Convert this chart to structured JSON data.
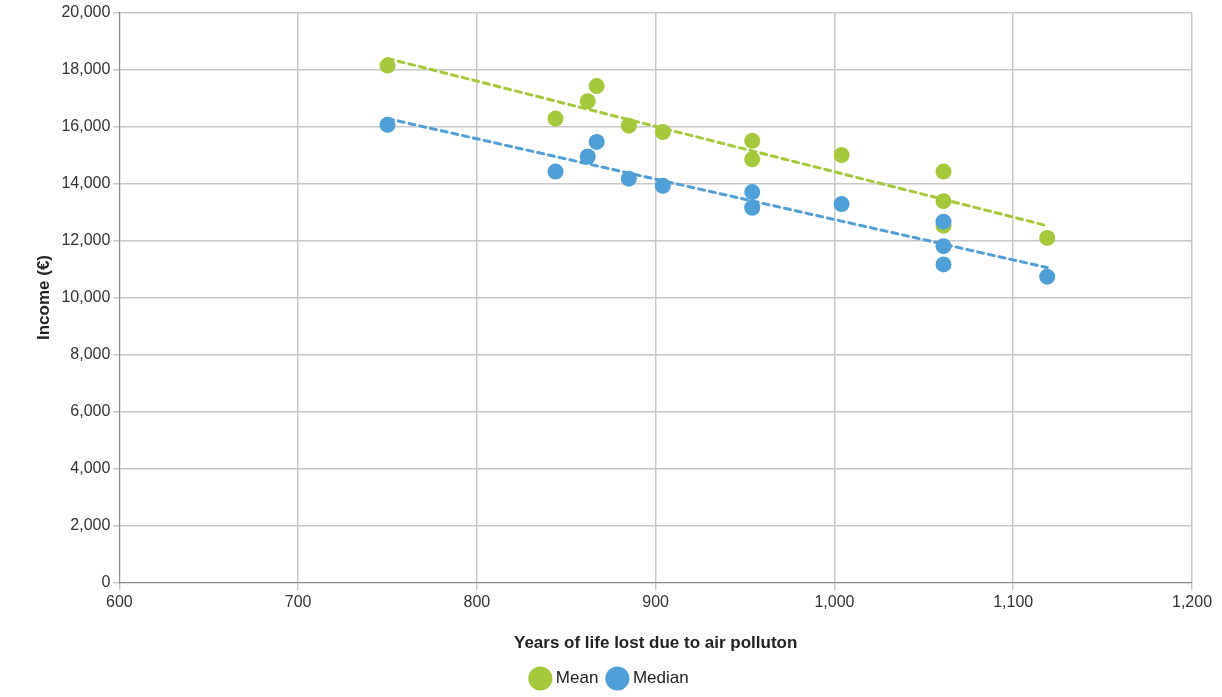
{
  "chart_data": {
    "type": "scatter",
    "xlabel": "Years of life lost due to air polluton",
    "ylabel": "Income (€)",
    "series": [
      {
        "name": "Mean",
        "color": "#a5c93a",
        "x": [
          750,
          844,
          862,
          867,
          885,
          904,
          954,
          954,
          1004,
          1061,
          1061,
          1061,
          1119
        ],
        "values": [
          18140,
          16280,
          16890,
          17420,
          16030,
          15810,
          15500,
          14850,
          15000,
          14420,
          13380,
          12520,
          12090
        ]
      },
      {
        "name": "Median",
        "color": "#4f9fd8",
        "x": [
          750,
          844,
          862,
          867,
          885,
          904,
          954,
          954,
          1004,
          1061,
          1061,
          1061,
          1119
        ],
        "values": [
          16060,
          14420,
          14950,
          15460,
          14170,
          13920,
          13700,
          13150,
          13280,
          12660,
          11800,
          11160,
          10730
        ]
      },
      {
        "type": "line",
        "color": "#a5c93a",
        "line_style": "dashed",
        "marker": "none",
        "x": [
          750,
          1119
        ],
        "values": [
          18390,
          12520
        ]
      },
      {
        "type": "line",
        "color": "#4f9fd8",
        "line_style": "dashed",
        "marker": "none",
        "x": [
          750,
          1119
        ],
        "values": [
          16280,
          11050
        ]
      }
    ],
    "xlim": [
      600,
      1200
    ],
    "xticks": [
      600,
      700,
      800,
      900,
      {
        "value": 1000,
        "label": "1,000"
      },
      {
        "value": 1100,
        "label": "1,100"
      },
      {
        "value": 1200,
        "label": "1,200"
      }
    ],
    "ylim": [
      0,
      20000
    ],
    "yticks": [
      0,
      {
        "value": 2000,
        "label": "2,000"
      },
      {
        "value": 4000,
        "label": "4,000"
      },
      {
        "value": 6000,
        "label": "6,000"
      },
      {
        "value": 8000,
        "label": "8,000"
      },
      {
        "value": 10000,
        "label": "10,000"
      },
      {
        "value": 12000,
        "label": "12,000"
      },
      {
        "value": 14000,
        "label": "14,000"
      },
      {
        "value": 16000,
        "label": "16,000"
      },
      {
        "value": 18000,
        "label": "18,000"
      },
      {
        "value": 20000,
        "label": "20,000"
      }
    ],
    "grid": true,
    "legend": "bottom",
    "marker": "circle"
  }
}
